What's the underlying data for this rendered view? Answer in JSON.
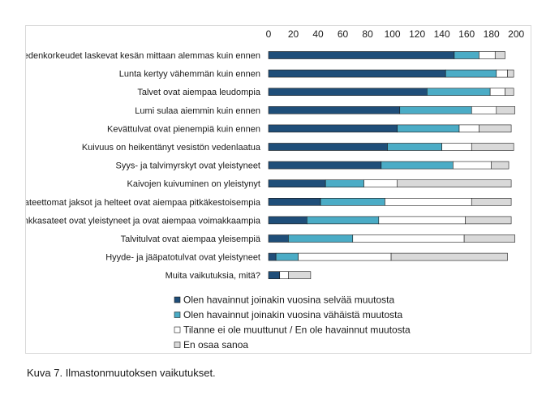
{
  "caption": "Kuva 7. Ilmastonmuutoksen vaikutukset.",
  "chart_data": {
    "type": "bar",
    "orientation": "horizontal",
    "stacked": true,
    "xlim": [
      0,
      200
    ],
    "xticks": [
      0,
      20,
      40,
      60,
      80,
      100,
      120,
      140,
      160,
      180,
      200
    ],
    "axis_position": "top",
    "grid": false,
    "legend_position": "bottom",
    "categories": [
      "Vedenkorkeudet laskevat kesän mittaan alemmas kuin ennen",
      "Lunta kertyy vähemmän kuin ennen",
      "Talvet ovat aiempaa leudompia",
      "Lumi sulaa aiemmin kuin ennen",
      "Kevättulvat ovat pienempiä kuin ennen",
      "Kuivuus on heikentänyt vesistön vedenlaatua",
      "Syys- ja talvimyrskyt ovat yleistyneet",
      "Kaivojen kuivuminen on yleistynyt",
      "Sateettomat jaksot ja helteet ovat aiempaa pitkäkestoisempia",
      "Rankkasateet ovat yleistyneet ja ovat aiempaa voimakkaampia",
      "Talvitulvat ovat aiempaa yleisempiä",
      "Hyyde- ja jääpatotulvat ovat yleistyneet",
      "Muita vaikutuksia, mitä?"
    ],
    "series": [
      {
        "name": "Olen havainnut joinakin vuosina selvää muutosta",
        "color": "#1f4e79",
        "values": [
          150,
          143,
          128,
          106,
          104,
          96,
          91,
          46,
          42,
          31,
          16,
          6,
          9
        ]
      },
      {
        "name": "Olen havainnut joinakin vuosina vähäistä muutosta",
        "color": "#4bacc6",
        "values": [
          20,
          41,
          51,
          58,
          50,
          44,
          58,
          31,
          52,
          58,
          52,
          18,
          0
        ]
      },
      {
        "name": "Tilanne ei ole muuttunut / En ole havainnut muutosta",
        "color": "#ffffff",
        "values": [
          13,
          9,
          12,
          20,
          16,
          24,
          31,
          27,
          70,
          70,
          90,
          75,
          7
        ]
      },
      {
        "name": "En osaa sanoa",
        "color": "#d9d9d9",
        "values": [
          8,
          5,
          7,
          15,
          26,
          34,
          14,
          92,
          32,
          37,
          41,
          94,
          18
        ]
      }
    ]
  }
}
